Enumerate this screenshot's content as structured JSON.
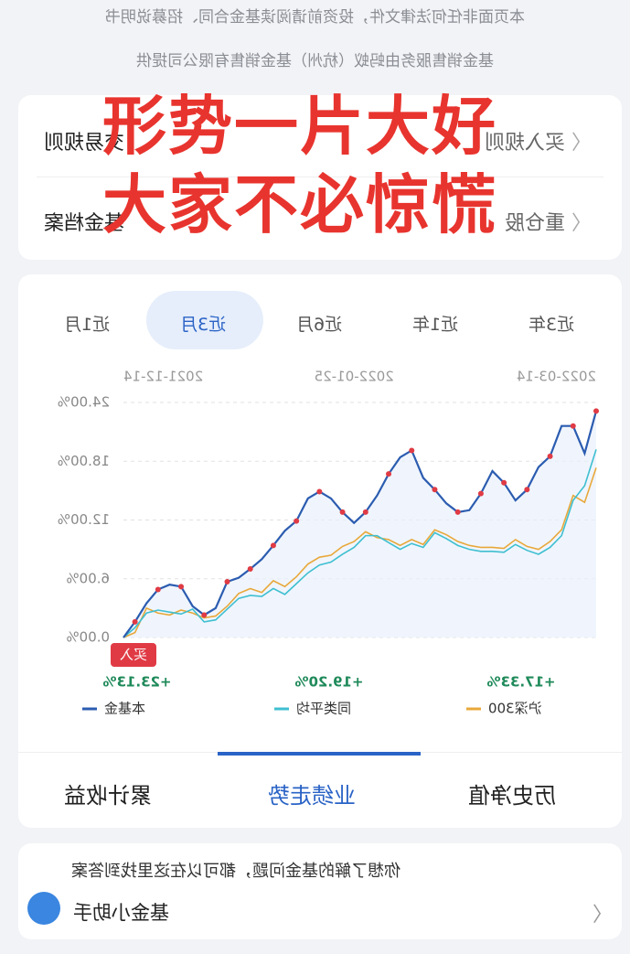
{
  "header": {
    "lines": [
      "本页面非任何法律文件，投资前请阅读基金合同、招募说明书",
      "基金销售服务由蚂蚁（杭州）基金销售有限公司提供"
    ]
  },
  "overlay": [
    "形势一片大好",
    "大家不必惊慌"
  ],
  "info_rows": [
    [
      "交易规则",
      "买入规则"
    ],
    [
      "基金档案",
      "重仓股"
    ]
  ],
  "period_tabs": [
    "近1月",
    "近3月",
    "近6月",
    "近1年",
    "近3年"
  ],
  "chart_data": {
    "type": "line",
    "categories": [
      "2021-12-14",
      null,
      null,
      null,
      null,
      null,
      null,
      null,
      null,
      null,
      null,
      null,
      null,
      null,
      null,
      null,
      null,
      null,
      null,
      null,
      "2022-01-25",
      null,
      null,
      null,
      null,
      null,
      null,
      null,
      null,
      null,
      null,
      null,
      null,
      null,
      null,
      null,
      null,
      null,
      null,
      null,
      null,
      "2022-03-14"
    ],
    "ylim": [
      0,
      24
    ],
    "yticks": [
      {
        "value": 0,
        "label": "0.00%"
      },
      {
        "value": 6,
        "label": "6.00%"
      },
      {
        "value": 12,
        "label": "12.00%"
      },
      {
        "value": 18,
        "label": "18.00%"
      },
      {
        "value": 24,
        "label": "24.00%"
      }
    ],
    "grid": true,
    "annotation": "买入",
    "series": [
      {
        "name": "本基金",
        "color": "#2b5cb0",
        "marker_color": "#e03b45",
        "values": [
          0,
          1.6,
          3.5,
          4.9,
          5.4,
          5.2,
          3.2,
          2.3,
          3,
          5.7,
          6.1,
          7,
          8,
          9.4,
          10.9,
          11.9,
          14.2,
          14.9,
          14.2,
          12.8,
          11.7,
          12.8,
          14.5,
          16.7,
          18.4,
          19.1,
          16.3,
          15.1,
          13.7,
          12.8,
          13,
          14.7,
          17,
          15.8,
          14,
          15.1,
          17.4,
          18.5,
          21.6,
          21.6,
          18.8,
          23.13
        ],
        "value_label": "+23.13%"
      },
      {
        "name": "同类平均",
        "color": "#3ebfd0",
        "values": [
          0,
          1,
          2.5,
          2.8,
          2.6,
          2.4,
          2.9,
          1.6,
          1.8,
          2.9,
          4,
          4.3,
          4.2,
          5,
          4.4,
          5.5,
          6.6,
          7.4,
          7.7,
          8.5,
          9.2,
          10.4,
          10.4,
          9.7,
          9,
          9.6,
          9.2,
          10.7,
          10.1,
          9.4,
          9,
          8.8,
          8.8,
          8.7,
          9.5,
          8.9,
          8.5,
          9.2,
          10.4,
          14,
          15.5,
          19.2
        ],
        "value_label": "+19.20%"
      },
      {
        "name": "沪深300",
        "color": "#e8a83a",
        "values": [
          0,
          0.5,
          3,
          2.5,
          2.3,
          2.8,
          2.5,
          2,
          2.2,
          3.2,
          4.5,
          5,
          4.6,
          5.8,
          5.2,
          6.2,
          7.5,
          8.2,
          8.4,
          9.3,
          9.8,
          10.8,
          10.2,
          10,
          9.4,
          10,
          9.5,
          11,
          10.5,
          9.8,
          9.4,
          9.2,
          9.2,
          9.1,
          10,
          9.3,
          9,
          9.8,
          11,
          14.5,
          13.8,
          17.33
        ],
        "value_label": "+17.33%"
      }
    ]
  },
  "bottom_tabs": [
    "累计收益",
    "业绩走势",
    "历史净值"
  ],
  "assistant": {
    "text": "你想了解的基金问题，都可以在这里找到答案",
    "title": "基金小助手"
  }
}
